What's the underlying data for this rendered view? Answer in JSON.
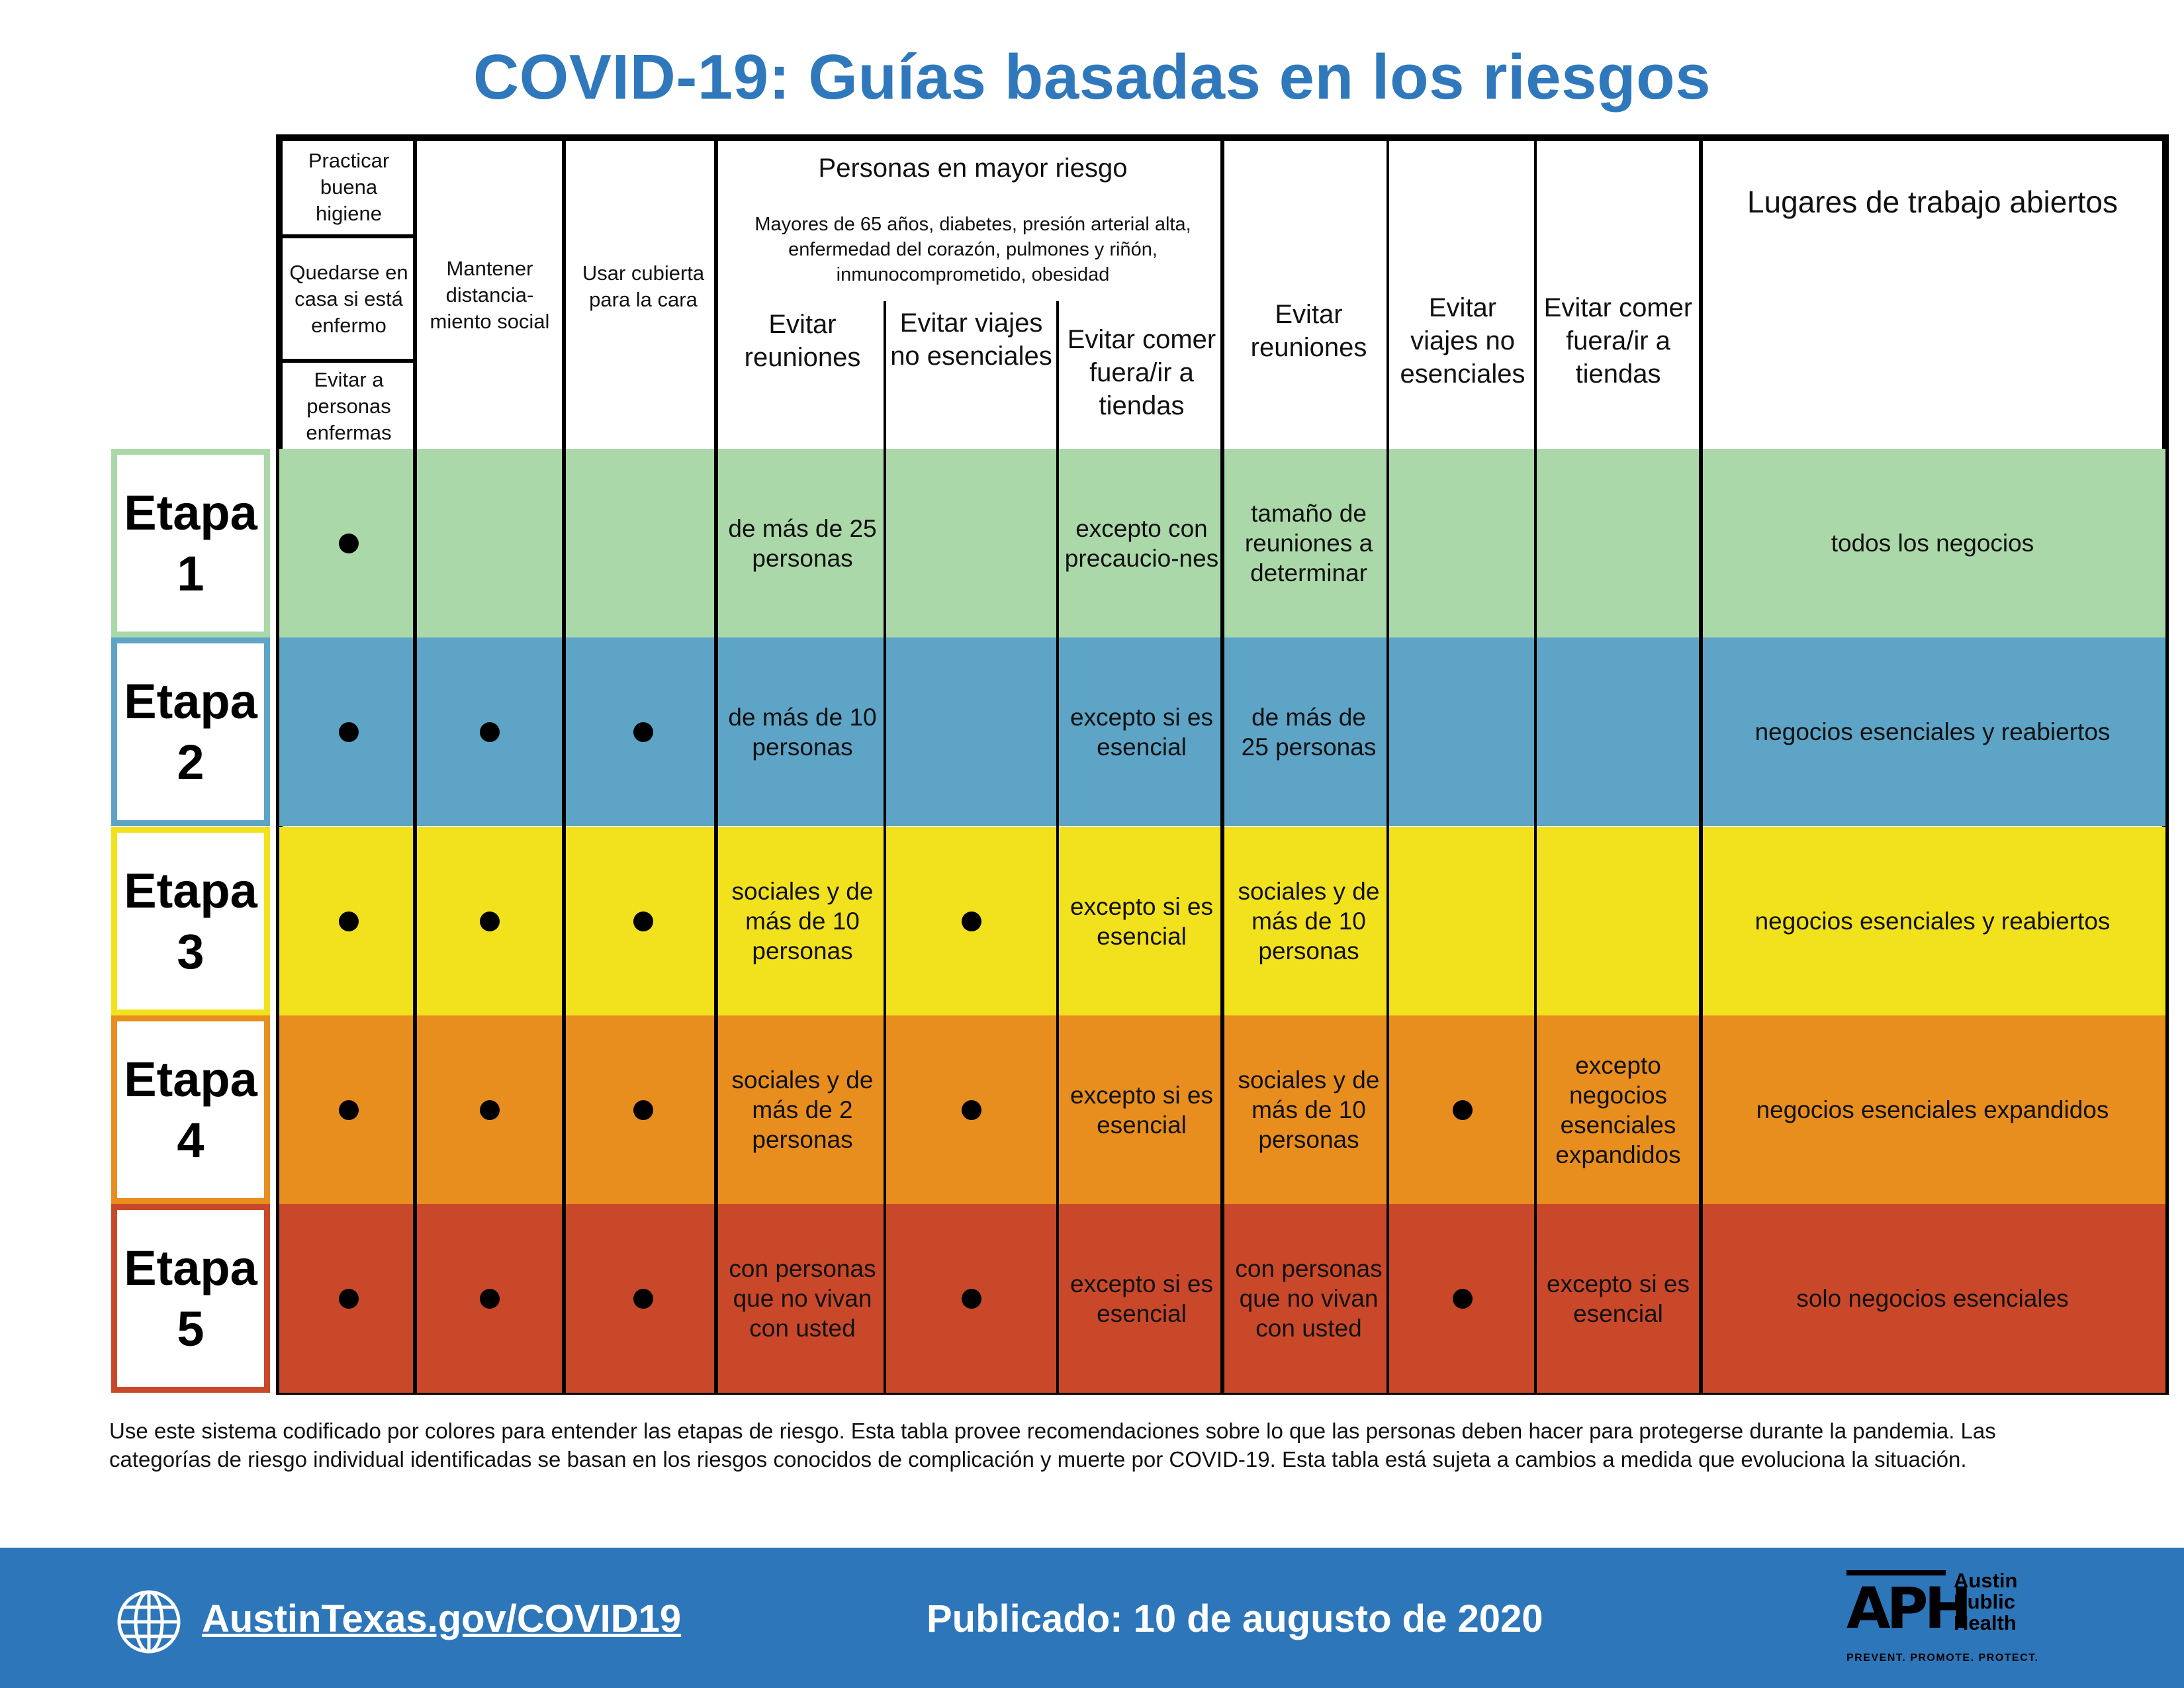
{
  "title": "COVID-19: Guías basadas en los riesgos",
  "colors": {
    "title": "#2f78bb",
    "footer": "#2d76ba",
    "stage1": "#abd8a9",
    "stage2": "#5da4c6",
    "stage3": "#f2e21e",
    "stage4": "#e88e1f",
    "stage5": "#c9482a"
  },
  "headers": {
    "hygiene_1": "Practicar buena higiene",
    "hygiene_2": "Quedarse en casa si está enfermo",
    "hygiene_3": "Evitar a personas enfermas",
    "distancing": "Mantener distancia-miento social",
    "face_covering": "Usar cubierta para la cara",
    "high_risk_group": "Personas en mayor riesgo",
    "high_risk_desc": "Mayores de 65 años, diabetes, presión arterial alta, enfermedad del corazón, pulmones y riñón, inmunocomprometido, obesidad",
    "hr_avoid_gatherings": "Evitar reuniones",
    "hr_avoid_travel": "Evitar viajes no esenciales",
    "hr_avoid_dining": "Evitar comer fuera/ir a tiendas",
    "avoid_gatherings": "Evitar reuniones",
    "avoid_travel": "Evitar viajes no esenciales",
    "avoid_dining": "Evitar comer fuera/ir a tiendas",
    "workplaces": "Lugares de trabajo abiertos"
  },
  "stage_label": "Etapa",
  "stages": [
    {
      "number": "1",
      "hygiene": true,
      "distancing": false,
      "face": false,
      "hr_gatherings": "de más de 25 personas",
      "hr_travel": false,
      "hr_dining": "excepto con precaucio-nes",
      "gatherings": "tamaño de reuniones a determinar",
      "travel": false,
      "dining": "",
      "workplaces": "todos los negocios"
    },
    {
      "number": "2",
      "hygiene": true,
      "distancing": true,
      "face": true,
      "hr_gatherings": "de más de 10 personas",
      "hr_travel": false,
      "hr_dining": "excepto si es esencial",
      "gatherings": "de más de 25 personas",
      "travel": false,
      "dining": "",
      "workplaces": "negocios esenciales y reabiertos"
    },
    {
      "number": "3",
      "hygiene": true,
      "distancing": true,
      "face": true,
      "hr_gatherings": "sociales y de más de 10 personas",
      "hr_travel": true,
      "hr_dining": "excepto si es esencial",
      "gatherings": "sociales y de más de 10 personas",
      "travel": false,
      "dining": "",
      "workplaces": "negocios esenciales y reabiertos"
    },
    {
      "number": "4",
      "hygiene": true,
      "distancing": true,
      "face": true,
      "hr_gatherings": "sociales y de más de 2 personas",
      "hr_travel": true,
      "hr_dining": "excepto si es esencial",
      "gatherings": "sociales y de más de 10 personas",
      "travel": true,
      "dining": "excepto negocios esenciales expandidos",
      "workplaces": "negocios esenciales expandidos"
    },
    {
      "number": "5",
      "hygiene": true,
      "distancing": true,
      "face": true,
      "hr_gatherings": "con personas que no vivan con usted",
      "hr_travel": true,
      "hr_dining": "excepto si es esencial",
      "gatherings": "con personas que no vivan con usted",
      "travel": true,
      "dining": "excepto si es esencial",
      "workplaces": "solo negocios esenciales"
    }
  ],
  "note": "Use este sistema codificado por colores para entender las etapas de riesgo. Esta tabla provee recomendaciones sobre lo que las personas deben hacer para protegerse durante la pandemia. Las categorías de riesgo individual identificadas se basan en los riesgos conocidos de complicación y muerte por COVID-19. Esta tabla está sujeta a cambios a medida que evoluciona la situación.",
  "footer": {
    "link": "AustinTexas.gov/COVID19",
    "published": "Publicado: 10 de augusto de 2020",
    "logo_mark": "APH",
    "logo_name_1": "Austin",
    "logo_name_2": "Public",
    "logo_name_3": "Health",
    "logo_tagline": "PREVENT. PROMOTE. PROTECT."
  }
}
